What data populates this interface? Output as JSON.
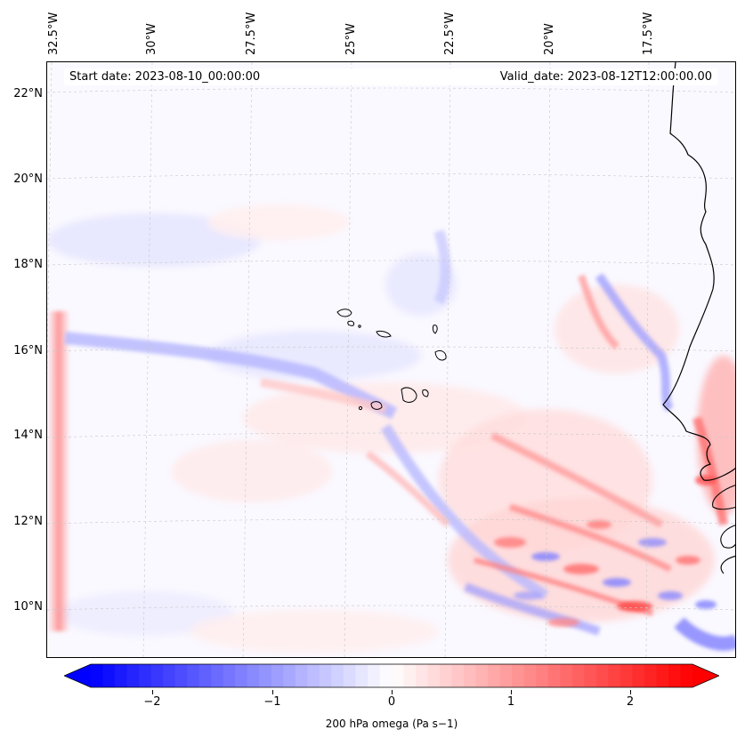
{
  "map": {
    "start_date_text": "Start date: 2023-08-10_00:00:00",
    "valid_date_text": "Valid_date: 2023-08-12T12:00:00.00",
    "lon_labels": [
      "32.5°W",
      "30°W",
      "27.5°W",
      "25°W",
      "22.5°W",
      "20°W",
      "17.5°W"
    ],
    "lat_labels": [
      "22°N",
      "20°N",
      "18°N",
      "16°N",
      "14°N",
      "12°N",
      "10°N"
    ],
    "colorbar": {
      "title": "200 hPa omega (Pa s−1)",
      "ticks": [
        "−2",
        "−1",
        "0",
        "1",
        "2"
      ],
      "min": -2.5,
      "max": 2.5,
      "negative_color": "#0000ff",
      "positive_color": "#ff0000"
    }
  }
}
